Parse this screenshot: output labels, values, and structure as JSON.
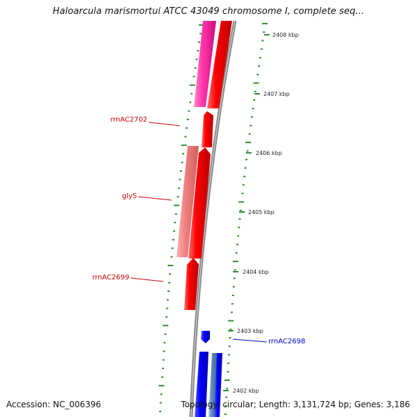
{
  "title": "Haloarcula marismortui ATCC 43049 chromosome I, complete seq...",
  "accession": "Accession: NC_006396",
  "summary": "Topology: circular; Length: 3,131,724 bp; Genes: 3,186",
  "colors": {
    "backbone": "#7a7a7a",
    "tick": "#2e8b2e",
    "red": "#ff0000",
    "pink": "#ff3399",
    "lightred": "#f08080",
    "blue": "#0000ff",
    "steelblue": "#5b8bb8"
  },
  "scale": {
    "ticks": [
      {
        "label": "2408 kbp"
      },
      {
        "label": "2407 kbp"
      },
      {
        "label": "2406 kbp"
      },
      {
        "label": "2405 kbp"
      },
      {
        "label": "2404 kbp"
      },
      {
        "label": "2403 kbp"
      },
      {
        "label": "2402 kbp"
      }
    ]
  },
  "feature_labels": [
    {
      "name": "rrnAC2702",
      "color": "#cc0000"
    },
    {
      "name": "glyS",
      "color": "#cc0000"
    },
    {
      "name": "rrnAC2699",
      "color": "#cc0000"
    },
    {
      "name": "rrnAC2698",
      "color": "#0000cc"
    }
  ]
}
